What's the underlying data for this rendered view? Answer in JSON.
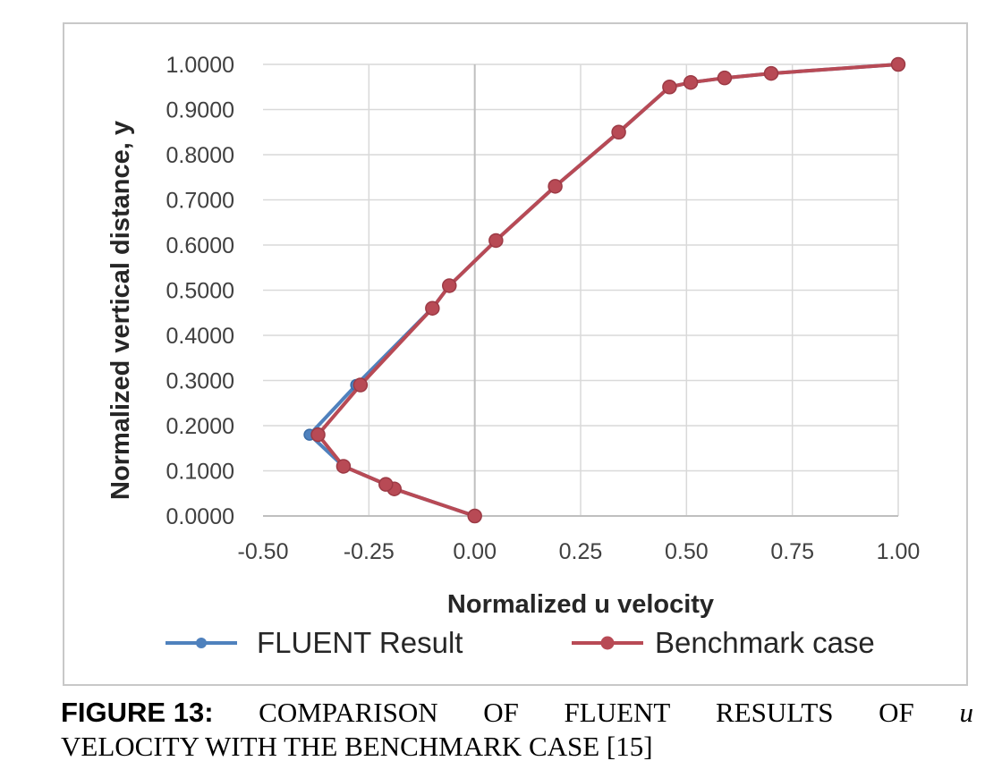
{
  "chart_data": {
    "type": "line",
    "title": "",
    "xlabel": "Normalized u velocity",
    "ylabel": "Normalized vertical distance, y",
    "xlim": [
      -0.5,
      1.0
    ],
    "ylim": [
      0.0,
      1.0
    ],
    "x_ticks": [
      "-0.50",
      "-0.25",
      "0.00",
      "0.25",
      "0.50",
      "0.75",
      "1.00"
    ],
    "x_tick_values": [
      -0.5,
      -0.25,
      0.0,
      0.25,
      0.5,
      0.75,
      1.0
    ],
    "y_ticks": [
      "0.0000",
      "0.1000",
      "0.2000",
      "0.3000",
      "0.4000",
      "0.5000",
      "0.6000",
      "0.7000",
      "0.8000",
      "0.9000",
      "1.0000"
    ],
    "y_tick_values": [
      0.0,
      0.1,
      0.2,
      0.3,
      0.4,
      0.5,
      0.6,
      0.7,
      0.8,
      0.9,
      1.0
    ],
    "grid": true,
    "legend_position": "bottom",
    "series": [
      {
        "name": "FLUENT Result",
        "color": "#4f81bd",
        "points": [
          [
            0.0,
            0.0
          ],
          [
            -0.19,
            0.06
          ],
          [
            -0.21,
            0.07
          ],
          [
            -0.31,
            0.11
          ],
          [
            -0.39,
            0.18
          ],
          [
            -0.28,
            0.29
          ],
          [
            -0.1,
            0.46
          ],
          [
            -0.06,
            0.51
          ],
          [
            0.05,
            0.61
          ],
          [
            0.19,
            0.73
          ],
          [
            0.34,
            0.85
          ],
          [
            0.46,
            0.95
          ],
          [
            0.51,
            0.96
          ],
          [
            0.59,
            0.97
          ],
          [
            0.7,
            0.98
          ],
          [
            1.0,
            1.0
          ]
        ]
      },
      {
        "name": "Benchmark case",
        "color": "#b84a55",
        "points": [
          [
            0.0,
            0.0
          ],
          [
            -0.19,
            0.06
          ],
          [
            -0.21,
            0.07
          ],
          [
            -0.31,
            0.11
          ],
          [
            -0.37,
            0.18
          ],
          [
            -0.27,
            0.29
          ],
          [
            -0.1,
            0.46
          ],
          [
            -0.06,
            0.51
          ],
          [
            0.05,
            0.61
          ],
          [
            0.19,
            0.73
          ],
          [
            0.34,
            0.85
          ],
          [
            0.46,
            0.95
          ],
          [
            0.51,
            0.96
          ],
          [
            0.59,
            0.97
          ],
          [
            0.7,
            0.98
          ],
          [
            1.0,
            1.0
          ]
        ]
      }
    ]
  },
  "caption": {
    "label": "FIGURE 13:",
    "words_line1": [
      "COMPARISON",
      "OF",
      "FLUENT",
      "RESULTS",
      "OF"
    ],
    "variable": "u",
    "line2": "VELOCITY WITH THE BENCHMARK CASE [15]"
  }
}
